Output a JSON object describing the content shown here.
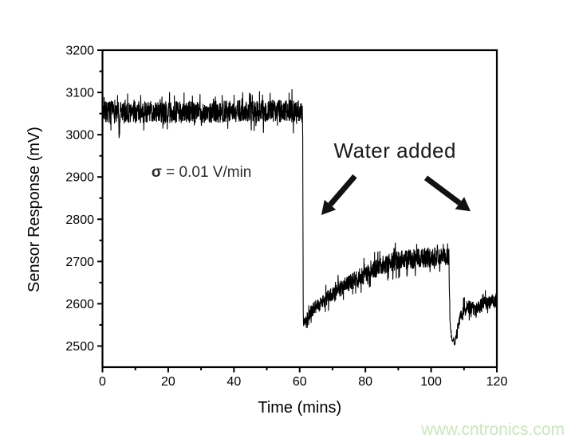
{
  "page": {
    "background": "#ffffff"
  },
  "watermark": {
    "text": "www.cntronics.com",
    "color": "#c9e7ba"
  },
  "chart_data": {
    "type": "line",
    "title": "",
    "xlabel": "Time (mins)",
    "ylabel": "Sensor Response (mV)",
    "xlim": [
      0,
      120
    ],
    "ylim": [
      2450,
      3200
    ],
    "x_major_ticks": [
      0,
      20,
      40,
      60,
      80,
      100,
      120
    ],
    "x_minor_ticks": [
      10,
      30,
      50,
      70,
      90,
      110
    ],
    "y_major_ticks": [
      2500,
      2600,
      2700,
      2800,
      2900,
      3000,
      3100,
      3200
    ],
    "y_minor_ticks": [
      2550,
      2650,
      2750,
      2850,
      2950,
      3050,
      3150
    ],
    "grid": false,
    "frame": true,
    "legend": null,
    "line_color": "#000000",
    "axis_color": "#000000",
    "tick_label_color": "#000000",
    "annotations": {
      "sigma": {
        "symbol": "σ",
        "text": " = 0.01 V/min",
        "t": 14.9,
        "mV": 2914,
        "color": "#2b2b2b"
      },
      "water_added": {
        "text": "Water added",
        "t": 89,
        "mV": 2963,
        "color": "#1a1a1a"
      },
      "arrows": [
        {
          "from": {
            "t": 76.8,
            "mV": 2902
          },
          "to": {
            "t": 66.6,
            "mV": 2810
          }
        },
        {
          "from": {
            "t": 98.4,
            "mV": 2898
          },
          "to": {
            "t": 112.0,
            "mV": 2819
          }
        }
      ]
    },
    "series": [
      {
        "name": "Sensor response",
        "description": "Noisy baseline ~3055 mV for 0-61 min (brief dip to ~2980 mV at 5 min); sharp drop to ~2550 mV when water added at ~61 min, gradual recovery to ~2710 mV plateau; second water addition at ~106 min drops signal to ~2505 mV, recovering to ~2610 mV by 120 min.",
        "noise_seed": 7,
        "samples": 2200,
        "spike_probability": 0.028,
        "keypoints": [
          {
            "t": 0,
            "mV": 3055,
            "noise": 26
          },
          {
            "t": 4.85,
            "mV": 3052,
            "noise": 26
          },
          {
            "t": 5.1,
            "mV": 2988,
            "noise": 10
          },
          {
            "t": 5.4,
            "mV": 3052,
            "noise": 26
          },
          {
            "t": 15,
            "mV": 3054,
            "noise": 26
          },
          {
            "t": 30,
            "mV": 3053,
            "noise": 26
          },
          {
            "t": 45,
            "mV": 3057,
            "noise": 26
          },
          {
            "t": 58,
            "mV": 3056,
            "noise": 27
          },
          {
            "t": 60.9,
            "mV": 3055,
            "noise": 26
          },
          {
            "t": 61.1,
            "mV": 2552,
            "noise": 10
          },
          {
            "t": 61.8,
            "mV": 2562,
            "noise": 13
          },
          {
            "t": 63,
            "mV": 2578,
            "noise": 15
          },
          {
            "t": 64.5,
            "mV": 2590,
            "noise": 16
          },
          {
            "t": 66,
            "mV": 2600,
            "noise": 17
          },
          {
            "t": 68.5,
            "mV": 2615,
            "noise": 18
          },
          {
            "t": 71,
            "mV": 2628,
            "noise": 19
          },
          {
            "t": 74,
            "mV": 2645,
            "noise": 20
          },
          {
            "t": 78,
            "mV": 2662,
            "noise": 21
          },
          {
            "t": 82,
            "mV": 2676,
            "noise": 22
          },
          {
            "t": 85.5,
            "mV": 2694,
            "noise": 22
          },
          {
            "t": 88,
            "mV": 2698,
            "noise": 23
          },
          {
            "t": 91,
            "mV": 2702,
            "noise": 24
          },
          {
            "t": 95,
            "mV": 2707,
            "noise": 24
          },
          {
            "t": 99,
            "mV": 2710,
            "noise": 24
          },
          {
            "t": 103,
            "mV": 2712,
            "noise": 23
          },
          {
            "t": 105.4,
            "mV": 2712,
            "noise": 21
          },
          {
            "t": 105.75,
            "mV": 2560,
            "noise": 8
          },
          {
            "t": 106.2,
            "mV": 2522,
            "noise": 9
          },
          {
            "t": 107.2,
            "mV": 2505,
            "noise": 8
          },
          {
            "t": 107.8,
            "mV": 2532,
            "noise": 11
          },
          {
            "t": 108.6,
            "mV": 2562,
            "noise": 14
          },
          {
            "t": 109.5,
            "mV": 2580,
            "noise": 15
          },
          {
            "t": 110.5,
            "mV": 2590,
            "noise": 16
          },
          {
            "t": 112,
            "mV": 2592,
            "noise": 17
          },
          {
            "t": 113.5,
            "mV": 2587,
            "noise": 17
          },
          {
            "t": 115,
            "mV": 2595,
            "noise": 17
          },
          {
            "t": 117,
            "mV": 2603,
            "noise": 17
          },
          {
            "t": 120,
            "mV": 2608,
            "noise": 18
          }
        ]
      }
    ]
  }
}
